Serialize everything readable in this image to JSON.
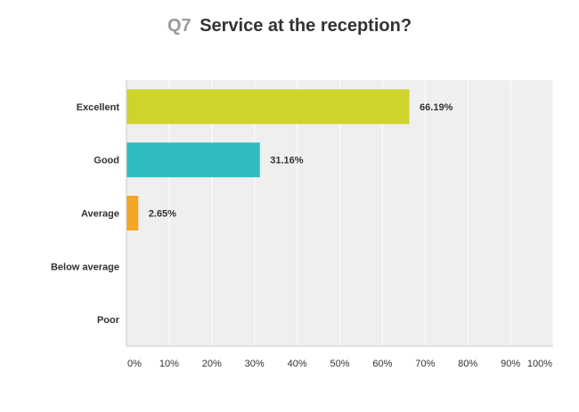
{
  "title": {
    "question_number": "Q7",
    "text": "Service at the reception?"
  },
  "colors": {
    "plot_background": "#efefef",
    "gridline": "#ffffff",
    "axis_line": "#c8c8c8",
    "label_text": "#333333",
    "tick_text": "#333333"
  },
  "chart_data": {
    "type": "bar",
    "orientation": "horizontal",
    "categories": [
      "Excellent",
      "Good",
      "Average",
      "Below average",
      "Poor"
    ],
    "values": [
      66.19,
      31.16,
      2.65,
      0,
      0
    ],
    "value_labels": [
      "66.19%",
      "31.16%",
      "2.65%",
      "",
      ""
    ],
    "bar_colors": [
      "#ced42b",
      "#2fbcbf",
      "#f5a623",
      "#ced42b",
      "#ced42b"
    ],
    "xlim": [
      0,
      100
    ],
    "xticks": [
      0,
      10,
      20,
      30,
      40,
      50,
      60,
      70,
      80,
      90,
      100
    ],
    "xtick_labels": [
      "0%",
      "10%",
      "20%",
      "30%",
      "40%",
      "50%",
      "60%",
      "70%",
      "80%",
      "90%",
      "100%"
    ],
    "grid": true,
    "legend": "none"
  }
}
